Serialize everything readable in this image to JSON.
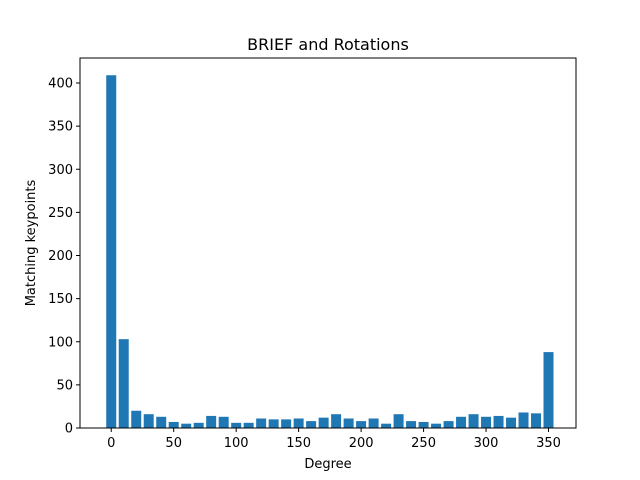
{
  "chart_data": {
    "type": "bar",
    "title": "BRIEF and Rotations",
    "xlabel": "Degree",
    "ylabel": "Matching keypoints",
    "x": [
      0,
      10,
      20,
      30,
      40,
      50,
      60,
      70,
      80,
      90,
      100,
      110,
      120,
      130,
      140,
      150,
      160,
      170,
      180,
      190,
      200,
      210,
      220,
      230,
      240,
      250,
      260,
      270,
      280,
      290,
      300,
      310,
      320,
      330,
      340,
      350
    ],
    "values": [
      409,
      103,
      20,
      16,
      13,
      7,
      5,
      6,
      14,
      13,
      6,
      6,
      11,
      10,
      10,
      11,
      8,
      12,
      16,
      11,
      8,
      11,
      5,
      16,
      8,
      7,
      5,
      8,
      13,
      16,
      13,
      14,
      12,
      18,
      17,
      88
    ],
    "xlim": [
      -25,
      372
    ],
    "ylim": [
      0,
      429
    ],
    "xticks": [
      "0",
      "50",
      "100",
      "150",
      "200",
      "250",
      "300",
      "350"
    ],
    "yticks": [
      "0",
      "50",
      "100",
      "150",
      "200",
      "250",
      "300",
      "350",
      "400"
    ],
    "grid": false,
    "colors": {
      "bar": "#1f77b4",
      "axis": "#000000"
    }
  }
}
